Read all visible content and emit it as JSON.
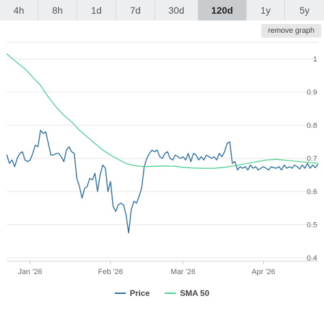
{
  "range_tabs": [
    {
      "label": "4h",
      "active": false
    },
    {
      "label": "8h",
      "active": false
    },
    {
      "label": "1d",
      "active": false
    },
    {
      "label": "7d",
      "active": false
    },
    {
      "label": "30d",
      "active": false
    },
    {
      "label": "120d",
      "active": true
    },
    {
      "label": "1y",
      "active": false
    },
    {
      "label": "5y",
      "active": false
    }
  ],
  "remove_graph_label": "remove graph",
  "colors": {
    "price": "#2a6fa3",
    "sma": "#4cd08f",
    "grid": "#e6e6e6"
  },
  "chart_data": {
    "type": "line",
    "title": "",
    "xlabel": "",
    "ylabel": "",
    "x_tick_labels": [
      "Jan '26",
      "Feb '26",
      "Mar '26",
      "Apr '26"
    ],
    "y_ticks": [
      0.4,
      0.5,
      0.6,
      0.7,
      0.8,
      0.9,
      1
    ],
    "y_tick_labels": [
      "0.4",
      "0.5",
      "0.6",
      "0.7",
      "0.8",
      "0.9",
      "1"
    ],
    "ylim": [
      0.39,
      1.05
    ],
    "xlim": [
      "2025-12-23",
      "2026-04-22"
    ],
    "grid": true,
    "legend_position": "bottom",
    "series": [
      {
        "name": "Price",
        "color": "#2a6fa3",
        "points": [
          [
            "2025-12-23",
            0.71
          ],
          [
            "2025-12-24",
            0.685
          ],
          [
            "2025-12-25",
            0.695
          ],
          [
            "2025-12-26",
            0.675
          ],
          [
            "2025-12-27",
            0.7
          ],
          [
            "2025-12-28",
            0.715
          ],
          [
            "2025-12-29",
            0.72
          ],
          [
            "2025-12-30",
            0.695
          ],
          [
            "2025-12-31",
            0.69
          ],
          [
            "2026-01-01",
            0.695
          ],
          [
            "2026-01-02",
            0.715
          ],
          [
            "2026-01-03",
            0.74
          ],
          [
            "2026-01-04",
            0.735
          ],
          [
            "2026-01-05",
            0.785
          ],
          [
            "2026-01-06",
            0.775
          ],
          [
            "2026-01-07",
            0.78
          ],
          [
            "2026-01-08",
            0.745
          ],
          [
            "2026-01-09",
            0.71
          ],
          [
            "2026-01-10",
            0.71
          ],
          [
            "2026-01-11",
            0.715
          ],
          [
            "2026-01-12",
            0.715
          ],
          [
            "2026-01-13",
            0.705
          ],
          [
            "2026-01-14",
            0.69
          ],
          [
            "2026-01-15",
            0.725
          ],
          [
            "2026-01-16",
            0.735
          ],
          [
            "2026-01-17",
            0.72
          ],
          [
            "2026-01-18",
            0.715
          ],
          [
            "2026-01-19",
            0.64
          ],
          [
            "2026-01-20",
            0.615
          ],
          [
            "2026-01-21",
            0.58
          ],
          [
            "2026-01-22",
            0.61
          ],
          [
            "2026-01-23",
            0.615
          ],
          [
            "2026-01-24",
            0.64
          ],
          [
            "2026-01-25",
            0.635
          ],
          [
            "2026-01-26",
            0.655
          ],
          [
            "2026-01-27",
            0.6
          ],
          [
            "2026-01-28",
            0.65
          ],
          [
            "2026-01-29",
            0.68
          ],
          [
            "2026-01-30",
            0.67
          ],
          [
            "2026-01-31",
            0.6
          ],
          [
            "2026-02-01",
            0.63
          ],
          [
            "2026-02-02",
            0.555
          ],
          [
            "2026-02-03",
            0.54
          ],
          [
            "2026-02-04",
            0.56
          ],
          [
            "2026-02-05",
            0.565
          ],
          [
            "2026-02-06",
            0.56
          ],
          [
            "2026-02-07",
            0.53
          ],
          [
            "2026-02-08",
            0.475
          ],
          [
            "2026-02-09",
            0.545
          ],
          [
            "2026-02-10",
            0.57
          ],
          [
            "2026-02-11",
            0.565
          ],
          [
            "2026-02-12",
            0.585
          ],
          [
            "2026-02-13",
            0.61
          ],
          [
            "2026-02-14",
            0.675
          ],
          [
            "2026-02-15",
            0.7
          ],
          [
            "2026-02-16",
            0.715
          ],
          [
            "2026-02-17",
            0.725
          ],
          [
            "2026-02-18",
            0.72
          ],
          [
            "2026-02-19",
            0.725
          ],
          [
            "2026-02-20",
            0.705
          ],
          [
            "2026-02-21",
            0.7
          ],
          [
            "2026-02-22",
            0.715
          ],
          [
            "2026-02-23",
            0.72
          ],
          [
            "2026-02-24",
            0.7
          ],
          [
            "2026-02-25",
            0.695
          ],
          [
            "2026-02-26",
            0.71
          ],
          [
            "2026-02-27",
            0.705
          ],
          [
            "2026-02-28",
            0.7
          ],
          [
            "2026-03-01",
            0.705
          ],
          [
            "2026-03-02",
            0.695
          ],
          [
            "2026-03-03",
            0.715
          ],
          [
            "2026-03-04",
            0.69
          ],
          [
            "2026-03-05",
            0.715
          ],
          [
            "2026-03-06",
            0.71
          ],
          [
            "2026-03-07",
            0.695
          ],
          [
            "2026-03-08",
            0.705
          ],
          [
            "2026-03-09",
            0.695
          ],
          [
            "2026-03-10",
            0.71
          ],
          [
            "2026-03-11",
            0.705
          ],
          [
            "2026-03-12",
            0.7
          ],
          [
            "2026-03-13",
            0.705
          ],
          [
            "2026-03-14",
            0.695
          ],
          [
            "2026-03-15",
            0.715
          ],
          [
            "2026-03-16",
            0.705
          ],
          [
            "2026-03-17",
            0.72
          ],
          [
            "2026-03-18",
            0.745
          ],
          [
            "2026-03-19",
            0.75
          ],
          [
            "2026-03-20",
            0.685
          ],
          [
            "2026-03-21",
            0.69
          ],
          [
            "2026-03-22",
            0.665
          ],
          [
            "2026-03-23",
            0.675
          ],
          [
            "2026-03-24",
            0.67
          ],
          [
            "2026-03-25",
            0.675
          ],
          [
            "2026-03-26",
            0.665
          ],
          [
            "2026-03-27",
            0.68
          ],
          [
            "2026-03-28",
            0.67
          ],
          [
            "2026-03-29",
            0.675
          ],
          [
            "2026-03-30",
            0.665
          ],
          [
            "2026-03-31",
            0.67
          ],
          [
            "2026-04-01",
            0.675
          ],
          [
            "2026-04-02",
            0.67
          ],
          [
            "2026-04-03",
            0.665
          ],
          [
            "2026-04-04",
            0.675
          ],
          [
            "2026-04-05",
            0.672
          ],
          [
            "2026-04-06",
            0.67
          ],
          [
            "2026-04-07",
            0.675
          ],
          [
            "2026-04-08",
            0.665
          ],
          [
            "2026-04-09",
            0.68
          ],
          [
            "2026-04-10",
            0.67
          ],
          [
            "2026-04-11",
            0.675
          ],
          [
            "2026-04-12",
            0.67
          ],
          [
            "2026-04-13",
            0.68
          ],
          [
            "2026-04-14",
            0.675
          ],
          [
            "2026-04-15",
            0.668
          ],
          [
            "2026-04-16",
            0.68
          ],
          [
            "2026-04-17",
            0.67
          ],
          [
            "2026-04-18",
            0.685
          ],
          [
            "2026-04-19",
            0.67
          ],
          [
            "2026-04-20",
            0.68
          ],
          [
            "2026-04-21",
            0.672
          ],
          [
            "2026-04-22",
            0.682
          ]
        ]
      },
      {
        "name": "SMA 50",
        "color": "#4cd08f",
        "points": [
          [
            "2025-12-23",
            1.015
          ],
          [
            "2025-12-26",
            0.995
          ],
          [
            "2025-12-30",
            0.97
          ],
          [
            "2026-01-02",
            0.945
          ],
          [
            "2026-01-05",
            0.92
          ],
          [
            "2026-01-08",
            0.885
          ],
          [
            "2026-01-11",
            0.855
          ],
          [
            "2026-01-14",
            0.83
          ],
          [
            "2026-01-17",
            0.81
          ],
          [
            "2026-01-20",
            0.785
          ],
          [
            "2026-01-23",
            0.765
          ],
          [
            "2026-01-26",
            0.745
          ],
          [
            "2026-01-29",
            0.725
          ],
          [
            "2026-02-01",
            0.71
          ],
          [
            "2026-02-04",
            0.697
          ],
          [
            "2026-02-07",
            0.685
          ],
          [
            "2026-02-10",
            0.678
          ],
          [
            "2026-02-14",
            0.675
          ],
          [
            "2026-02-18",
            0.676
          ],
          [
            "2026-02-22",
            0.677
          ],
          [
            "2026-02-26",
            0.676
          ],
          [
            "2026-03-01",
            0.673
          ],
          [
            "2026-03-05",
            0.671
          ],
          [
            "2026-03-09",
            0.67
          ],
          [
            "2026-03-13",
            0.67
          ],
          [
            "2026-03-17",
            0.673
          ],
          [
            "2026-03-21",
            0.678
          ],
          [
            "2026-03-25",
            0.684
          ],
          [
            "2026-03-29",
            0.689
          ],
          [
            "2026-04-02",
            0.695
          ],
          [
            "2026-04-06",
            0.697
          ],
          [
            "2026-04-10",
            0.694
          ],
          [
            "2026-04-14",
            0.691
          ],
          [
            "2026-04-18",
            0.688
          ],
          [
            "2026-04-22",
            0.685
          ]
        ]
      }
    ]
  }
}
